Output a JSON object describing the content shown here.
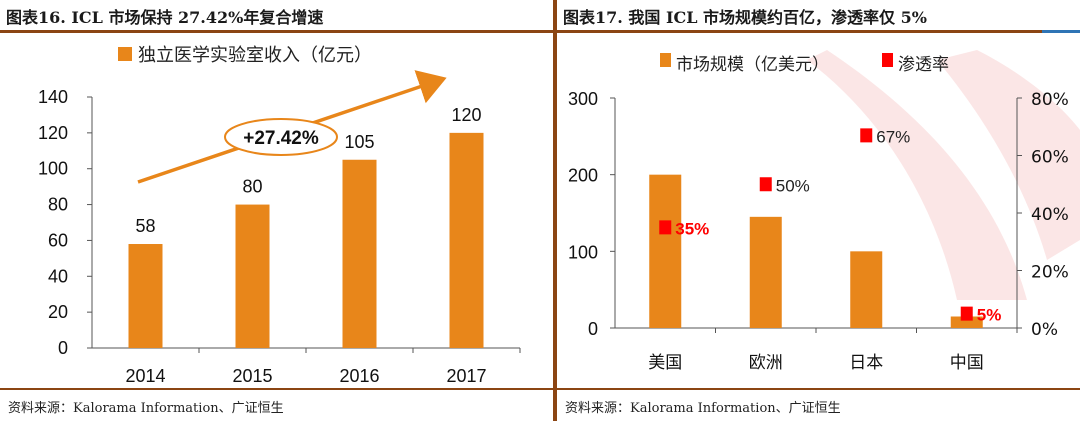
{
  "left": {
    "title": "图表16.  ICL 市场保持 27.42%年复合增速",
    "source": "资料来源：Kalorama Information、广证恒生",
    "annotation": "+27.42%",
    "chart_data": {
      "type": "bar",
      "title": "",
      "categories": [
        "2014",
        "2015",
        "2016",
        "2017"
      ],
      "series": [
        {
          "name": "独立医学实验室收入（亿元）",
          "values": [
            58,
            80,
            105,
            120
          ],
          "color": "#E8861A"
        }
      ],
      "ylim": [
        0,
        140
      ],
      "yticks": [
        "0",
        "20",
        "40",
        "60",
        "80",
        "100",
        "120",
        "140"
      ],
      "legend": "top"
    }
  },
  "right": {
    "title": "图表17.  我国 ICL 市场规模约百亿，渗透率仅 5%",
    "source": "资料来源：Kalorama Information、广证恒生",
    "chart_data": {
      "type": "bar",
      "title": "",
      "categories": [
        "美国",
        "欧洲",
        "日本",
        "中国"
      ],
      "series": [
        {
          "name": "市场规模（亿美元）",
          "values": [
            200,
            145,
            100,
            15
          ],
          "axis": "left",
          "color": "#E8861A"
        },
        {
          "name": "渗透率",
          "values": [
            35,
            50,
            67,
            5
          ],
          "labels": [
            "35%",
            "50%",
            "67%",
            "5%"
          ],
          "axis": "right",
          "color": "#FF0000"
        }
      ],
      "ylim_left": [
        0,
        300
      ],
      "yticks_left": [
        "0",
        "100",
        "200",
        "300"
      ],
      "ylim_right": [
        0,
        80
      ],
      "yticks_right": [
        "0%",
        "20%",
        "40%",
        "60%",
        "80%"
      ],
      "legend": "top"
    }
  }
}
